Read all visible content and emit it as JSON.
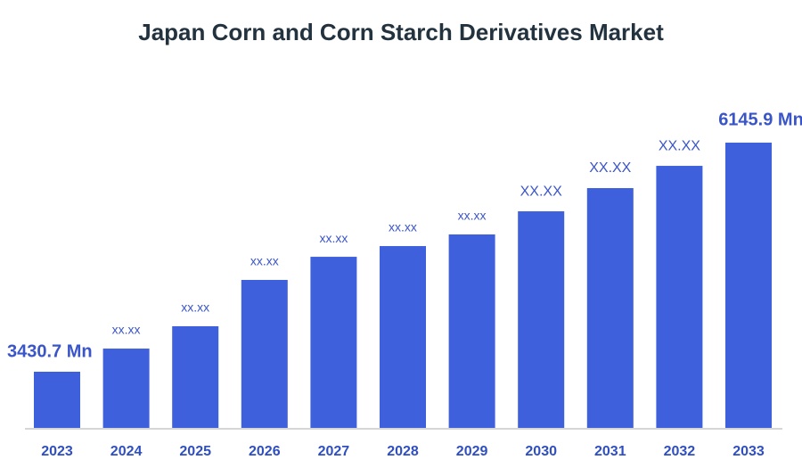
{
  "chart_data": {
    "type": "bar",
    "title": "Japan Corn and Corn Starch Derivatives  Market",
    "categories": [
      "2023",
      "2024",
      "2025",
      "2026",
      "2027",
      "2028",
      "2029",
      "2030",
      "2031",
      "2032",
      "2033"
    ],
    "values": [
      3430.7,
      3705,
      3970,
      4519,
      4793,
      4920,
      5058,
      5332,
      5607,
      5871,
      6145.9
    ],
    "value_labels": [
      "3430.7 Mn",
      "xx.xx",
      "xx.xx",
      "xx.xx",
      "xx.xx",
      "xx.xx",
      "xx.xx",
      "XX.XX",
      "XX.XX",
      "XX.XX",
      "6145.9 Mn"
    ],
    "color": "#3f60dc",
    "ylim": [
      2765,
      6780
    ]
  }
}
